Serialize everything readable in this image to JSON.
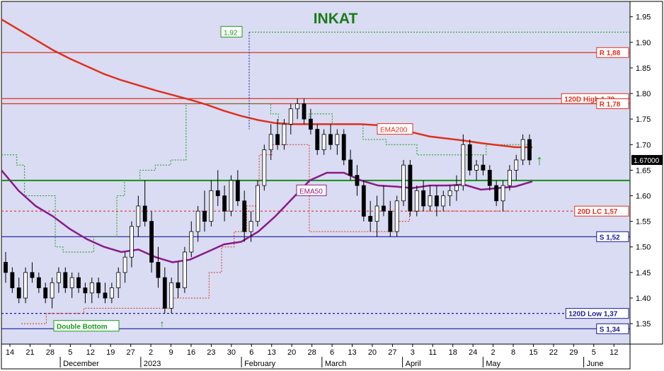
{
  "chart_data": {
    "type": "candlestick",
    "title": "INKAT",
    "title_color": "#1a7a1a",
    "background": "#d9dcf2",
    "grid": false,
    "ylim": [
      1.31,
      1.98
    ],
    "yticks": [
      "1.35",
      "1.40",
      "1.45",
      "1.50",
      "1.55",
      "1.60",
      "1.65",
      "1.70",
      "1.75",
      "1.80",
      "1.85",
      "1.90",
      "1.95"
    ],
    "current_price": "1.67000",
    "x_tick_labels": [
      "14",
      "21",
      "28",
      "5",
      "12",
      "19",
      "27",
      "2",
      "9",
      "16",
      "23",
      "30",
      "6",
      "13",
      "20",
      "28",
      "6",
      "13",
      "20",
      "27",
      "3",
      "11",
      "18",
      "24",
      "2",
      "8",
      "15",
      "22",
      "29",
      "5",
      "12"
    ],
    "month_labels": [
      "December",
      "2023",
      "February",
      "March",
      "April",
      "May",
      "June"
    ],
    "horizontal_levels": [
      {
        "label": "R 1,88",
        "value": 1.88,
        "color": "#e03020",
        "style": "solid"
      },
      {
        "label": "120D High 1,79",
        "value": 1.79,
        "color": "#e03020",
        "style": "solid"
      },
      {
        "label": "R 1,78",
        "value": 1.78,
        "color": "#e03020",
        "style": "solid"
      },
      {
        "label": "20D LC 1,57",
        "value": 1.57,
        "color": "#e03020",
        "style": "dashed"
      },
      {
        "label": "S 1,52",
        "value": 1.52,
        "color": "#1a1a9a",
        "style": "solid"
      },
      {
        "label": "120D Low 1,37",
        "value": 1.37,
        "color": "#1a1a9a",
        "style": "dashed"
      },
      {
        "label": "S 1,34",
        "value": 1.34,
        "color": "#1a1a9a",
        "style": "solid"
      }
    ],
    "support_green_line": 1.63,
    "annotations": [
      {
        "label": "1,92",
        "value": 1.92,
        "color": "#1a9a1a"
      },
      {
        "label": "Double Bottom",
        "color": "#1a9a1a"
      },
      {
        "label": "EMA200",
        "color": "#e03020"
      },
      {
        "label": "EMA50",
        "color": "#8a1a8a"
      }
    ],
    "series": [
      {
        "name": "EMA200",
        "color": "#e03020",
        "values": [
          1.945,
          1.925,
          1.905,
          1.885,
          1.868,
          1.853,
          1.838,
          1.826,
          1.816,
          1.806,
          1.797,
          1.788,
          1.778,
          1.766,
          1.756,
          1.748,
          1.742,
          1.74,
          1.74,
          1.74,
          1.74,
          1.74,
          1.738,
          1.73,
          1.724,
          1.716,
          1.712,
          1.708,
          1.703,
          1.699,
          1.695,
          1.695
        ]
      },
      {
        "name": "EMA50",
        "color": "#8a1a8a",
        "values": [
          1.65,
          1.61,
          1.58,
          1.56,
          1.535,
          1.515,
          1.5,
          1.49,
          1.495,
          1.48,
          1.47,
          1.475,
          1.49,
          1.505,
          1.51,
          1.53,
          1.56,
          1.595,
          1.63,
          1.645,
          1.645,
          1.63,
          1.62,
          1.618,
          1.615,
          1.62,
          1.62,
          1.622,
          1.612,
          1.615,
          1.618,
          1.628
        ]
      }
    ],
    "candles": [
      [
        1.47,
        1.49,
        1.43,
        1.45
      ],
      [
        1.45,
        1.46,
        1.41,
        1.42
      ],
      [
        1.42,
        1.44,
        1.39,
        1.4
      ],
      [
        1.4,
        1.46,
        1.39,
        1.45
      ],
      [
        1.45,
        1.47,
        1.43,
        1.44
      ],
      [
        1.44,
        1.45,
        1.41,
        1.42
      ],
      [
        1.42,
        1.43,
        1.39,
        1.4
      ],
      [
        1.4,
        1.44,
        1.38,
        1.43
      ],
      [
        1.43,
        1.46,
        1.41,
        1.45
      ],
      [
        1.45,
        1.46,
        1.41,
        1.42
      ],
      [
        1.42,
        1.45,
        1.4,
        1.44
      ],
      [
        1.44,
        1.45,
        1.41,
        1.42
      ],
      [
        1.42,
        1.43,
        1.39,
        1.41
      ],
      [
        1.41,
        1.44,
        1.39,
        1.43
      ],
      [
        1.43,
        1.44,
        1.4,
        1.41
      ],
      [
        1.41,
        1.43,
        1.39,
        1.4
      ],
      [
        1.4,
        1.43,
        1.39,
        1.42
      ],
      [
        1.42,
        1.46,
        1.4,
        1.45
      ],
      [
        1.45,
        1.49,
        1.43,
        1.48
      ],
      [
        1.48,
        1.55,
        1.46,
        1.54
      ],
      [
        1.54,
        1.6,
        1.52,
        1.58
      ],
      [
        1.58,
        1.63,
        1.54,
        1.55
      ],
      [
        1.55,
        1.57,
        1.45,
        1.47
      ],
      [
        1.47,
        1.5,
        1.42,
        1.44
      ],
      [
        1.44,
        1.46,
        1.37,
        1.38
      ],
      [
        1.38,
        1.44,
        1.37,
        1.43
      ],
      [
        1.43,
        1.47,
        1.4,
        1.42
      ],
      [
        1.42,
        1.5,
        1.41,
        1.49
      ],
      [
        1.49,
        1.55,
        1.48,
        1.53
      ],
      [
        1.53,
        1.58,
        1.51,
        1.57
      ],
      [
        1.57,
        1.61,
        1.53,
        1.55
      ],
      [
        1.55,
        1.63,
        1.54,
        1.61
      ],
      [
        1.61,
        1.65,
        1.58,
        1.6
      ],
      [
        1.6,
        1.62,
        1.55,
        1.57
      ],
      [
        1.57,
        1.64,
        1.56,
        1.63
      ],
      [
        1.63,
        1.65,
        1.58,
        1.59
      ],
      [
        1.59,
        1.61,
        1.51,
        1.53
      ],
      [
        1.53,
        1.57,
        1.51,
        1.55
      ],
      [
        1.55,
        1.63,
        1.54,
        1.62
      ],
      [
        1.62,
        1.7,
        1.61,
        1.69
      ],
      [
        1.69,
        1.74,
        1.67,
        1.72
      ],
      [
        1.72,
        1.75,
        1.69,
        1.7
      ],
      [
        1.7,
        1.75,
        1.69,
        1.74
      ],
      [
        1.74,
        1.78,
        1.72,
        1.77
      ],
      [
        1.77,
        1.79,
        1.75,
        1.78
      ],
      [
        1.78,
        1.79,
        1.74,
        1.75
      ],
      [
        1.75,
        1.77,
        1.72,
        1.73
      ],
      [
        1.73,
        1.74,
        1.68,
        1.69
      ],
      [
        1.69,
        1.73,
        1.68,
        1.72
      ],
      [
        1.72,
        1.74,
        1.69,
        1.7
      ],
      [
        1.7,
        1.73,
        1.68,
        1.72
      ],
      [
        1.72,
        1.73,
        1.66,
        1.67
      ],
      [
        1.67,
        1.69,
        1.63,
        1.64
      ],
      [
        1.64,
        1.66,
        1.6,
        1.62
      ],
      [
        1.62,
        1.63,
        1.55,
        1.56
      ],
      [
        1.56,
        1.59,
        1.53,
        1.55
      ],
      [
        1.55,
        1.6,
        1.52,
        1.58
      ],
      [
        1.58,
        1.62,
        1.56,
        1.57
      ],
      [
        1.57,
        1.59,
        1.52,
        1.53
      ],
      [
        1.53,
        1.6,
        1.52,
        1.59
      ],
      [
        1.59,
        1.67,
        1.58,
        1.66
      ],
      [
        1.66,
        1.67,
        1.56,
        1.57
      ],
      [
        1.57,
        1.62,
        1.56,
        1.61
      ],
      [
        1.61,
        1.63,
        1.57,
        1.58
      ],
      [
        1.58,
        1.62,
        1.57,
        1.6
      ],
      [
        1.6,
        1.62,
        1.56,
        1.58
      ],
      [
        1.58,
        1.61,
        1.57,
        1.6
      ],
      [
        1.6,
        1.62,
        1.58,
        1.61
      ],
      [
        1.61,
        1.64,
        1.59,
        1.62
      ],
      [
        1.62,
        1.72,
        1.61,
        1.7
      ],
      [
        1.7,
        1.71,
        1.64,
        1.65
      ],
      [
        1.65,
        1.67,
        1.63,
        1.66
      ],
      [
        1.66,
        1.68,
        1.64,
        1.65
      ],
      [
        1.65,
        1.66,
        1.61,
        1.62
      ],
      [
        1.62,
        1.63,
        1.58,
        1.59
      ],
      [
        1.59,
        1.63,
        1.57,
        1.62
      ],
      [
        1.62,
        1.66,
        1.61,
        1.65
      ],
      [
        1.65,
        1.68,
        1.63,
        1.67
      ],
      [
        1.67,
        1.72,
        1.66,
        1.71
      ],
      [
        1.71,
        1.72,
        1.66,
        1.67
      ]
    ],
    "stop_line_upper": [
      1.68,
      1.68,
      1.66,
      1.6,
      1.6,
      1.6,
      1.6,
      1.5,
      1.49,
      1.49,
      1.49,
      1.49,
      1.52,
      1.52,
      1.52,
      1.6,
      1.63,
      1.63,
      1.65,
      1.65,
      1.66,
      1.66,
      1.67,
      1.67,
      1.78,
      1.78,
      1.78,
      1.78,
      1.78,
      1.78,
      1.78,
      1.78,
      1.78,
      1.78,
      1.78,
      1.76,
      1.74,
      1.74,
      1.74,
      1.74,
      1.76,
      1.76,
      1.76,
      1.74,
      1.74,
      1.74,
      1.74,
      1.71,
      1.71,
      1.71,
      1.7,
      1.7,
      1.7,
      1.7,
      1.68,
      1.68,
      1.68,
      1.68,
      1.68,
      1.68,
      1.68,
      1.68,
      1.68,
      1.7,
      1.7,
      1.7,
      1.7,
      1.7,
      1.7,
      1.7
    ],
    "stop_line_lower": [
      1.35,
      1.35,
      1.37,
      1.37,
      1.37,
      1.38,
      1.38,
      1.38,
      1.38,
      1.38,
      1.38,
      1.38,
      1.4,
      1.4,
      1.4,
      1.45,
      1.5,
      1.53,
      1.58,
      1.68,
      1.7,
      1.7,
      1.7,
      1.53,
      1.53,
      1.53,
      1.53,
      1.53,
      1.53,
      1.53,
      1.55,
      1.57,
      1.57,
      1.57,
      1.57,
      1.57,
      1.57,
      1.57,
      1.57,
      1.57
    ]
  },
  "ui": {
    "arrow_up_glyph": "↑"
  }
}
